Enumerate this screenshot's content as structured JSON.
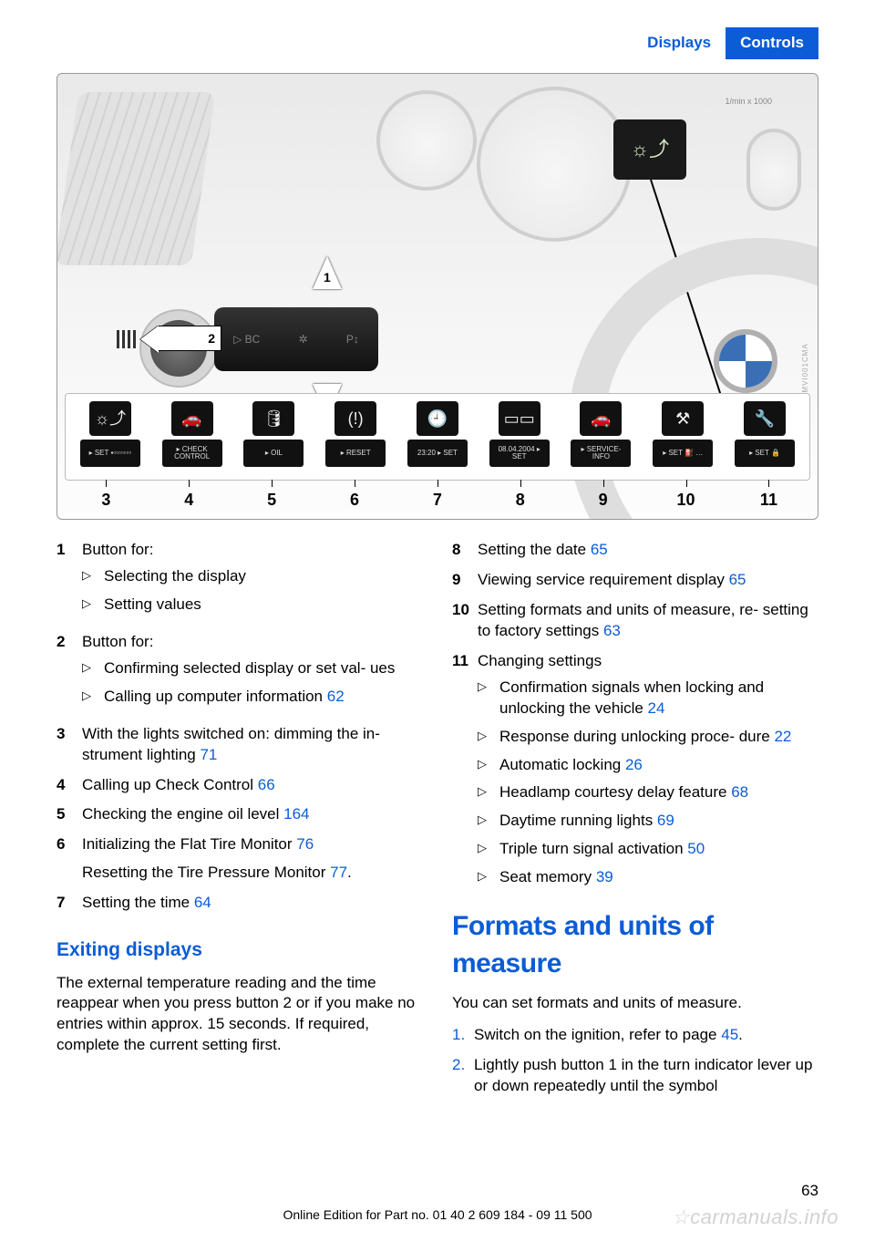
{
  "header": {
    "tab_left": "Displays",
    "tab_right": "Controls"
  },
  "figure": {
    "tacho_label": "1/min x 1000",
    "hud_glyph": "☼⤴",
    "arrow2_num": "2",
    "stalk_labels": [
      "▷ BC",
      "✲",
      "P↕"
    ],
    "icons": [
      {
        "top": "☼⤴",
        "bot": "▸ SET  ▪▫▫▫▫▫▫▫"
      },
      {
        "top": "🚗",
        "bot": "▸ CHECK CONTROL"
      },
      {
        "top": "🛢",
        "bot": "▸ OIL"
      },
      {
        "top": "(!)",
        "bot": "▸ RESET"
      },
      {
        "top": "🕘",
        "bot": "23:20  ▸ SET"
      },
      {
        "top": "▭▭",
        "bot": "08.04.2004  ▸ SET"
      },
      {
        "top": "🚗",
        "bot": "▸ SERVICE-INFO"
      },
      {
        "top": "⚒",
        "bot": "▸ SET  ⛽ …"
      },
      {
        "top": "🔧",
        "bot": "▸ SET  🔒"
      }
    ],
    "numbers": [
      "3",
      "4",
      "5",
      "6",
      "7",
      "8",
      "9",
      "10",
      "11"
    ],
    "sidecode": "MVI001CMA"
  },
  "left_items": [
    {
      "n": "1",
      "text": "Button for:",
      "sub": [
        {
          "t": "Selecting the display"
        },
        {
          "t": "Setting values"
        }
      ]
    },
    {
      "n": "2",
      "text": "Button for:",
      "sub": [
        {
          "t": "Confirming selected display or set val‐ ues"
        },
        {
          "t": "Calling up computer information",
          "ref": "62"
        }
      ]
    },
    {
      "n": "3",
      "text": "With the lights switched on: dimming the in‐ strument lighting",
      "ref": "71"
    },
    {
      "n": "4",
      "text": "Calling up Check Control",
      "ref": "66"
    },
    {
      "n": "5",
      "text": "Checking the engine oil level",
      "ref": "164"
    },
    {
      "n": "6",
      "text": "Initializing the Flat Tire Monitor",
      "ref": "76",
      "extra": "Resetting the Tire Pressure Monitor",
      "extra_ref": "77",
      "extra_tail": "."
    },
    {
      "n": "7",
      "text": "Setting the time",
      "ref": "64"
    }
  ],
  "right_items": [
    {
      "n": "8",
      "text": "Setting the date",
      "ref": "65"
    },
    {
      "n": "9",
      "text": "Viewing service requirement display",
      "ref": "65"
    },
    {
      "n": "10",
      "text": "Setting formats and units of measure, re‐ setting to factory settings",
      "ref": "63"
    },
    {
      "n": "11",
      "text": "Changing settings",
      "sub": [
        {
          "t": "Confirmation signals when locking and unlocking the vehicle",
          "ref": "24"
        },
        {
          "t": "Response during unlocking proce‐ dure",
          "ref": "22"
        },
        {
          "t": "Automatic locking",
          "ref": "26"
        },
        {
          "t": "Headlamp courtesy delay feature",
          "ref": "68"
        },
        {
          "t": "Daytime running lights",
          "ref": "69"
        },
        {
          "t": "Triple turn signal activation",
          "ref": "50"
        },
        {
          "t": "Seat memory",
          "ref": "39"
        }
      ]
    }
  ],
  "exiting": {
    "title": "Exiting displays",
    "body": "The external temperature reading and the time reappear when you press button 2 or if you make no entries within approx. 15 seconds. If required, complete the current setting first."
  },
  "formats": {
    "title": "Formats and units of measure",
    "intro": "You can set formats and units of measure.",
    "steps": [
      {
        "n": "1.",
        "t": "Switch on the ignition, refer to page ",
        "ref": "45",
        "tail": "."
      },
      {
        "n": "2.",
        "t": "Lightly push button 1 in the turn indicator lever up or down repeatedly until the symbol"
      }
    ]
  },
  "page_number": "63",
  "footer": "Online Edition for Part no. 01 40 2 609 184 - 09 11 500",
  "watermark": "☆carmanuals.info"
}
